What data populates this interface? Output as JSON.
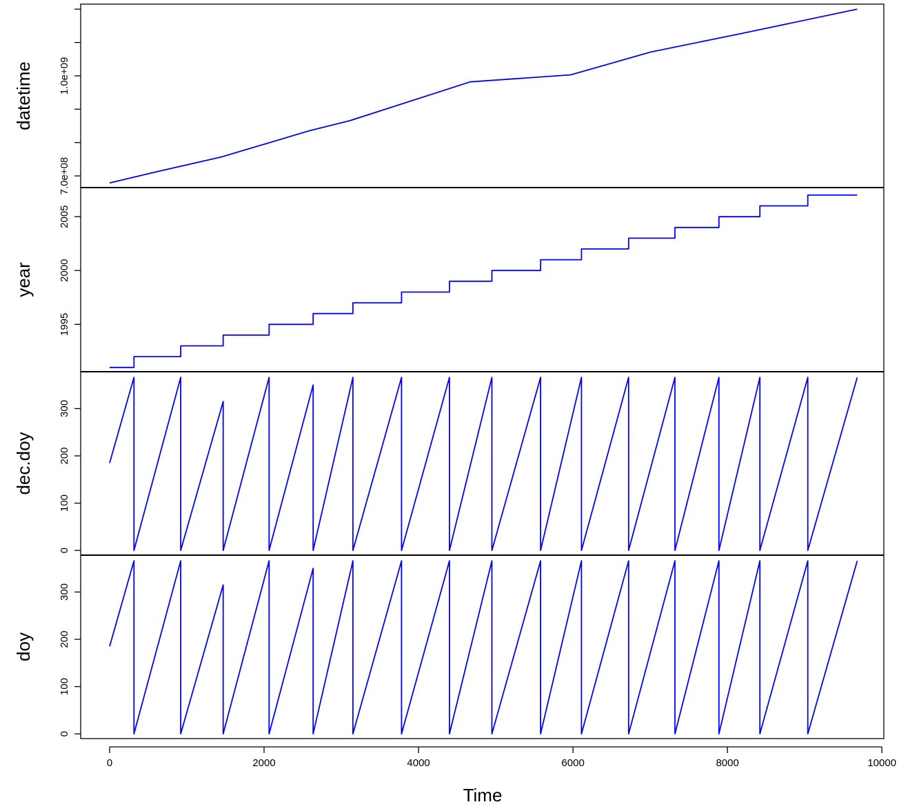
{
  "chart_data": {
    "type": "line",
    "xlabel": "Time",
    "x_axis": {
      "range": [
        -375,
        10025
      ],
      "ticks": [
        0,
        2000,
        4000,
        6000,
        8000,
        10000
      ],
      "tick_labels": [
        "0",
        "2000",
        "4000",
        "6000",
        "8000",
        "10000"
      ]
    },
    "line_color": "#0000ff",
    "series": [
      {
        "name": "datetime",
        "ylim": [
          665000000.0,
          1215000000.0
        ],
        "y_ticks": [
          700000000.0,
          800000000.0,
          900000000.0,
          1000000000.0,
          1100000000.0,
          1200000000.0
        ],
        "y_tick_labels": [
          "7.0e+08",
          "",
          "",
          "1.0e+09",
          "",
          ""
        ],
        "x": [
          0,
          600,
          1450,
          2580,
          3100,
          4670,
          5970,
          7000,
          8200,
          9680
        ],
        "y": [
          679000000.0,
          712000000.0,
          757000000.0,
          835000000.0,
          865000000.0,
          982000000.0,
          1003000000.0,
          1071000000.0,
          1128000000.0,
          1200000000.0
        ]
      },
      {
        "name": "year",
        "ylim": [
          1990.6,
          2007.7
        ],
        "y_ticks": [
          1995,
          2000,
          2005
        ],
        "y_tick_labels": [
          "1995",
          "2000",
          "2005"
        ],
        "year_values": [
          1991,
          1992,
          1993,
          1994,
          1995,
          1996,
          1997,
          1998,
          1999,
          2000,
          2001,
          2002,
          2003,
          2004,
          2005,
          2006,
          2007
        ],
        "year_starts": [
          0,
          315,
          920,
          1470,
          2065,
          2635,
          3150,
          3780,
          4400,
          4950,
          5580,
          6110,
          6720,
          7320,
          7890,
          8420,
          9040
        ],
        "x_end": 9680
      },
      {
        "name": "dec.doy",
        "ylim": [
          -10,
          378
        ],
        "y_ticks": [
          0,
          100,
          200,
          300
        ],
        "y_tick_labels": [
          "0",
          "100",
          "200",
          "300"
        ],
        "x": [
          0,
          315,
          315,
          920,
          920,
          1470,
          1470,
          2065,
          2065,
          2635,
          2635,
          3150,
          3150,
          3780,
          3780,
          4400,
          4400,
          4950,
          4950,
          5580,
          5580,
          6110,
          6110,
          6720,
          6720,
          7320,
          7320,
          7890,
          7890,
          8420,
          8420,
          9040,
          9040,
          9680
        ],
        "y": [
          185,
          366,
          0,
          366,
          0,
          315,
          0,
          366,
          0,
          350,
          0,
          366,
          0,
          366,
          0,
          366,
          0,
          366,
          0,
          366,
          0,
          366,
          0,
          366,
          0,
          366,
          0,
          366,
          0,
          366,
          0,
          366,
          0,
          366
        ]
      },
      {
        "name": "doy",
        "ylim": [
          -10,
          378
        ],
        "y_ticks": [
          0,
          100,
          200,
          300
        ],
        "y_tick_labels": [
          "0",
          "100",
          "200",
          "300"
        ],
        "x": [
          0,
          315,
          315,
          920,
          920,
          1470,
          1470,
          2065,
          2065,
          2635,
          2635,
          3150,
          3150,
          3780,
          3780,
          4400,
          4400,
          4950,
          4950,
          5580,
          5580,
          6110,
          6110,
          6720,
          6720,
          7320,
          7320,
          7890,
          7890,
          8420,
          8420,
          9040,
          9040,
          9680
        ],
        "y": [
          185,
          366,
          0,
          366,
          0,
          315,
          0,
          366,
          0,
          350,
          0,
          366,
          0,
          366,
          0,
          366,
          0,
          366,
          0,
          366,
          0,
          366,
          0,
          366,
          0,
          366,
          0,
          366,
          0,
          366,
          0,
          366,
          0,
          366
        ]
      }
    ]
  }
}
